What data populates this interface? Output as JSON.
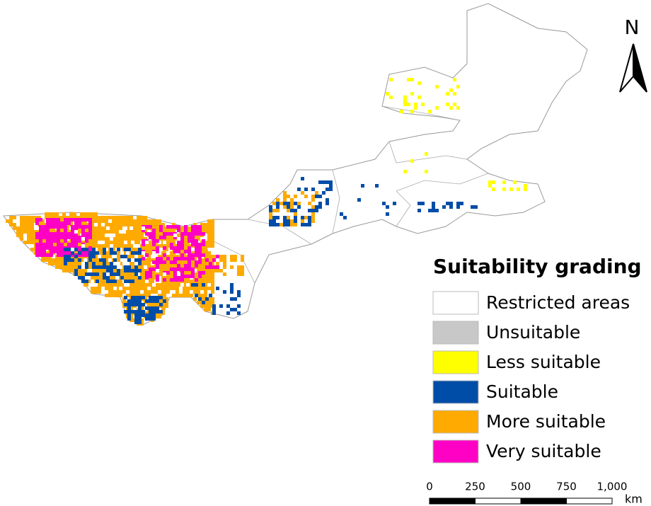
{
  "north_arrow": {
    "label": "N"
  },
  "legend": {
    "title": "Suitability grading",
    "items": [
      {
        "label": "Restricted areas",
        "color": "#ffffff"
      },
      {
        "label": "Unsuitable",
        "color": "#c8c8c8"
      },
      {
        "label": "Less suitable",
        "color": "#ffff00"
      },
      {
        "label": "Suitable",
        "color": "#004da8"
      },
      {
        "label": "More suitable",
        "color": "#ffaa00"
      },
      {
        "label": "Very suitable",
        "color": "#ff00c5"
      }
    ]
  },
  "scale_bar": {
    "labels": [
      "0",
      "250",
      "500",
      "750",
      "1,000"
    ],
    "unit": "km"
  }
}
